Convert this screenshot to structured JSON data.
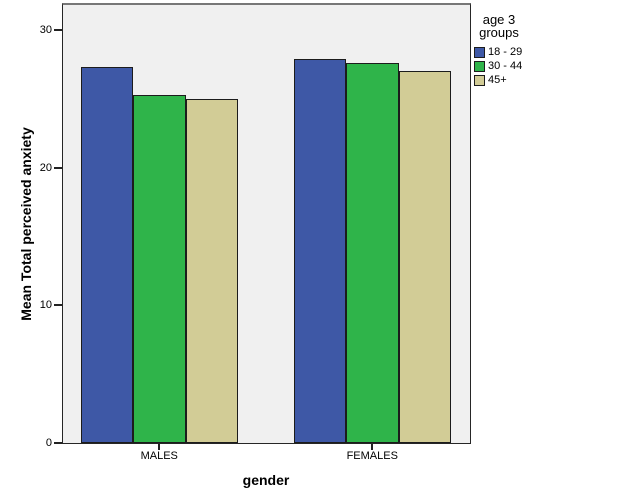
{
  "chart_data": {
    "type": "bar",
    "title": "",
    "xlabel": "gender",
    "ylabel": "Mean Total perceived anxiety",
    "categories": [
      "MALES",
      "FEMALES"
    ],
    "series": [
      {
        "name": "18 - 29",
        "color": "#3E58A6",
        "values": [
          27.3,
          27.9
        ]
      },
      {
        "name": "30 - 44",
        "color": "#2FB44A",
        "values": [
          25.3,
          27.6
        ]
      },
      {
        "name": "45+",
        "color": "#D2CC96",
        "values": [
          25.0,
          27.0
        ]
      }
    ],
    "ylim": [
      0,
      31.8
    ],
    "yticks": [
      0,
      10,
      20,
      30
    ],
    "legend_title": "age 3 groups",
    "legend_position": "right",
    "grid": false,
    "plot_background": "#F0F0F0",
    "frame_color": "#262626",
    "top_frame_color": "#777777",
    "bar_border_color": "#1C1C1C"
  }
}
